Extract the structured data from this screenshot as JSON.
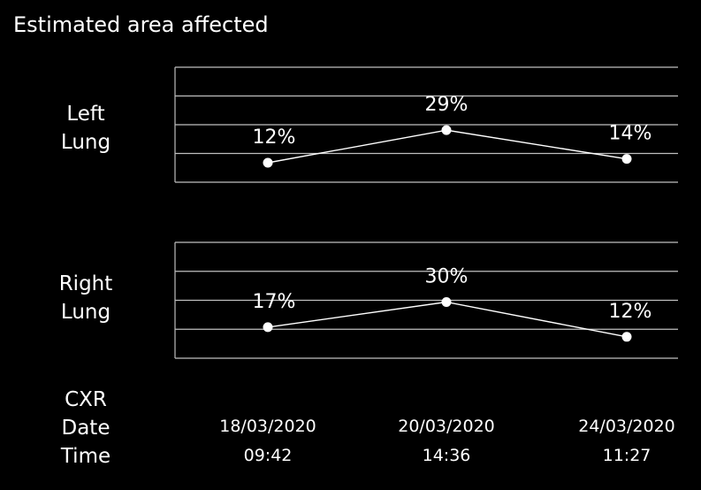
{
  "title": "Estimated area affected",
  "colors": {
    "background": "#000000",
    "foreground": "#ffffff",
    "grid": "#bfbfbf"
  },
  "chart_data": {
    "type": "line",
    "title": "Estimated area affected",
    "categories": [
      "18/03/2020 09:42",
      "20/03/2020 14:36",
      "24/03/2020 11:27"
    ],
    "dates": [
      "18/03/2020",
      "20/03/2020",
      "24/03/2020"
    ],
    "times": [
      "09:42",
      "14:36",
      "11:27"
    ],
    "x_header": [
      "CXR",
      "Date",
      "Time"
    ],
    "grid": true,
    "series": [
      {
        "name": "Left Lung",
        "label_lines": [
          "Left",
          "Lung"
        ],
        "values": [
          12,
          29,
          14
        ],
        "value_labels": [
          "12%",
          "29%",
          "14%"
        ]
      },
      {
        "name": "Right Lung",
        "label_lines": [
          "Right",
          "Lung"
        ],
        "values": [
          17,
          30,
          12
        ],
        "value_labels": [
          "17%",
          "30%",
          "12%"
        ]
      }
    ]
  }
}
